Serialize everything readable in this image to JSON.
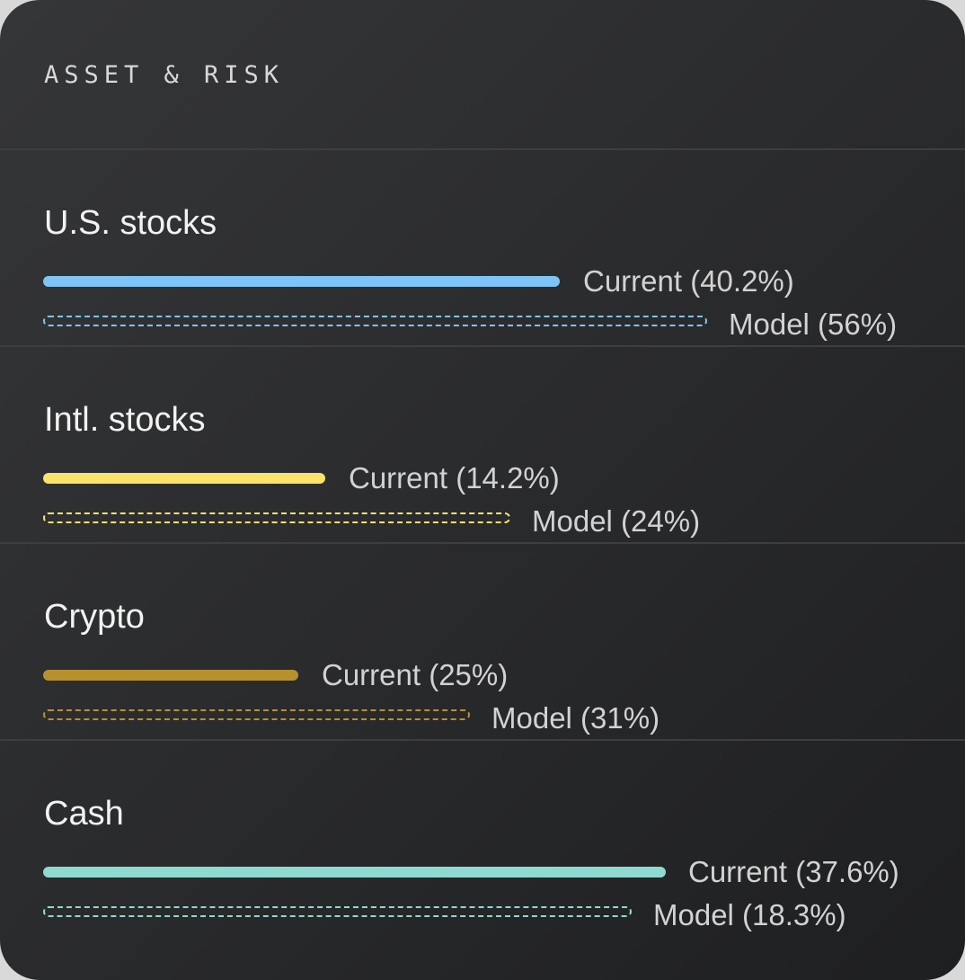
{
  "card": {
    "title": "ASSET & RISK"
  },
  "assets": [
    {
      "name": "U.S. stocks",
      "current_label": "Current (40.2%)",
      "model_label": "Model (56%)",
      "current_pct": 40.2,
      "model_pct": 56,
      "color": "#7fc4f6"
    },
    {
      "name": "Intl. stocks",
      "current_label": "Current (14.2%)",
      "model_label": "Model (24%)",
      "current_pct": 14.2,
      "model_pct": 24,
      "color": "#fbe36b"
    },
    {
      "name": "Crypto",
      "current_label": "Current (25%)",
      "model_label": "Model (31%)",
      "current_pct": 25,
      "model_pct": 31,
      "color": "#b7912e"
    },
    {
      "name": "Cash",
      "current_label": "Current (37.6%)",
      "model_label": "Model (18.3%)",
      "current_pct": 37.6,
      "model_pct": 18.3,
      "color": "#8edad1"
    }
  ]
}
